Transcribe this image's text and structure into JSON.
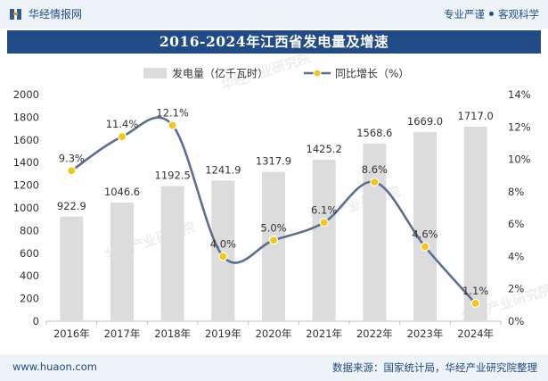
{
  "header": {
    "brand": "华经情报网",
    "tag1": "专业严谨",
    "tag2": "客观科学"
  },
  "title": "2016-2024年江西省发电量及增速",
  "footer": {
    "site": "www.huaon.com",
    "source": "数据来源：国家统计局，华经产业研究院整理"
  },
  "watermark": "华经产业研究院",
  "colors": {
    "bar": "#dcdcdc",
    "line": "#5a6f93",
    "marker_fill": "#f5c518",
    "marker_stroke": "#ffffff",
    "title_bg": "#214b86"
  },
  "chart_data": {
    "type": "bar+line",
    "title": "2016-2024年江西省发电量及增速",
    "categories": [
      "2016年",
      "2017年",
      "2018年",
      "2019年",
      "2020年",
      "2021年",
      "2022年",
      "2023年",
      "2024年"
    ],
    "series": [
      {
        "name": "发电量（亿千瓦时）",
        "type": "bar",
        "axis": "left",
        "values": [
          922.9,
          1046.6,
          1192.5,
          1241.9,
          1317.9,
          1425.2,
          1568.6,
          1669.0,
          1717.0
        ],
        "labels": [
          "922.9",
          "1046.6",
          "1192.5",
          "1241.9",
          "1317.9",
          "1425.2",
          "1568.6",
          "1669.0",
          "1717.0"
        ]
      },
      {
        "name": "同比增长（%）",
        "type": "line",
        "axis": "right",
        "values": [
          9.3,
          11.4,
          12.1,
          4.0,
          5.0,
          6.1,
          8.6,
          4.6,
          1.1
        ],
        "labels": [
          "9.3%",
          "11.4%",
          "12.1%",
          "4.0%",
          "5.0%",
          "6.1%",
          "8.6%",
          "4.6%",
          "1.1%"
        ]
      }
    ],
    "y_left": {
      "min": 0,
      "max": 2000,
      "step": 200,
      "ticks": [
        "0",
        "200",
        "400",
        "600",
        "800",
        "1000",
        "1200",
        "1400",
        "1600",
        "1800",
        "2000"
      ]
    },
    "y_right": {
      "min": 0,
      "max": 14,
      "step": 2,
      "ticks": [
        "0%",
        "2%",
        "4%",
        "6%",
        "8%",
        "10%",
        "12%",
        "14%"
      ]
    },
    "legend_position": "top-center",
    "grid": false
  }
}
